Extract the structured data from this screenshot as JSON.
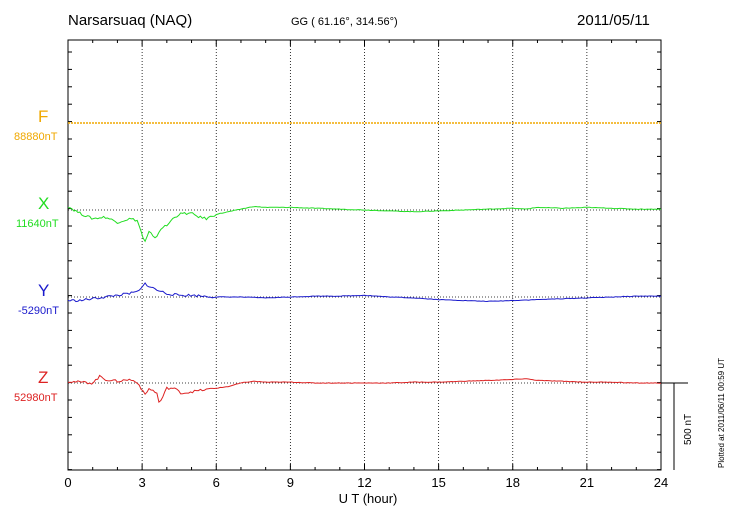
{
  "header": {
    "station": "Narsarsuaq (NAQ)",
    "coords": "GG ( 61.16°, 314.56°)",
    "date": "2011/05/11"
  },
  "plot_note": "Plotted at 2011/06/11 00:59 UT",
  "chart_data": {
    "type": "line",
    "title": "Narsarsuaq (NAQ)",
    "xlabel": "U T (hour)",
    "ylabel": "",
    "xlim": [
      0,
      24
    ],
    "xticks": [
      0,
      3,
      6,
      9,
      12,
      15,
      18,
      21,
      24
    ],
    "grid": true,
    "scale_bar": {
      "label": "500 nT",
      "value": 500
    },
    "baseline_labels": [
      {
        "key": "F",
        "name": "F",
        "value": "88880nT",
        "color": "#f0a800"
      },
      {
        "key": "X",
        "name": "X",
        "value": "11640nT",
        "color": "#22dd22"
      },
      {
        "key": "Y",
        "name": "Y",
        "value": "-5290nT",
        "color": "#1a1acc"
      },
      {
        "key": "Z",
        "name": "Z",
        "value": "52980nT",
        "color": "#dd2222"
      }
    ],
    "series": [
      {
        "name": "F",
        "unit": "nT offset",
        "baseline": 88880,
        "x": [
          0,
          3,
          6,
          9,
          12,
          15,
          18,
          21,
          24
        ],
        "values": [
          0,
          0,
          0,
          0,
          0,
          0,
          0,
          0,
          0
        ]
      },
      {
        "name": "X",
        "unit": "nT offset",
        "baseline": 11640,
        "x": [
          0,
          0.5,
          1,
          1.5,
          2,
          2.5,
          2.8,
          3,
          3.1,
          3.3,
          3.5,
          3.8,
          4,
          4.3,
          4.6,
          5,
          5.3,
          5.6,
          6,
          6.5,
          7,
          7.5,
          8,
          9,
          10,
          11,
          12,
          13,
          14,
          15,
          16,
          17,
          18,
          18.5,
          19,
          20,
          21,
          22,
          23,
          24
        ],
        "values": [
          20,
          -20,
          -50,
          -40,
          -70,
          -50,
          -60,
          -140,
          -190,
          -120,
          -170,
          -100,
          -90,
          -40,
          -20,
          -20,
          -40,
          -50,
          -25,
          -10,
          5,
          20,
          15,
          15,
          10,
          5,
          0,
          -5,
          -10,
          -5,
          0,
          5,
          10,
          5,
          15,
          10,
          15,
          10,
          5,
          5
        ]
      },
      {
        "name": "Y",
        "unit": "nT offset",
        "baseline": -5290,
        "x": [
          0,
          0.5,
          1,
          1.5,
          2,
          2.5,
          2.8,
          3,
          3.1,
          3.3,
          3.6,
          4,
          4.5,
          5,
          5.5,
          6,
          7,
          8,
          9,
          10,
          11,
          12,
          13,
          14,
          15,
          16,
          17,
          18,
          19,
          20,
          21,
          22,
          23,
          24
        ],
        "values": [
          -20,
          -20,
          -10,
          0,
          10,
          20,
          30,
          50,
          80,
          60,
          40,
          20,
          10,
          10,
          5,
          0,
          0,
          -5,
          0,
          5,
          5,
          10,
          0,
          -5,
          -15,
          -20,
          -25,
          -20,
          -15,
          -10,
          -5,
          0,
          5,
          5
        ]
      },
      {
        "name": "Z",
        "unit": "nT offset",
        "baseline": 52980,
        "x": [
          0,
          0.5,
          1,
          1.3,
          1.5,
          2,
          2.5,
          2.8,
          3,
          3.1,
          3.3,
          3.6,
          3.7,
          4,
          4.3,
          4.6,
          5,
          5.5,
          6,
          6.5,
          7,
          7.5,
          8,
          9,
          10,
          11,
          12,
          13,
          14,
          15,
          16,
          17,
          18,
          18.5,
          19,
          20,
          21,
          22,
          23,
          24
        ],
        "values": [
          10,
          5,
          0,
          40,
          20,
          10,
          20,
          5,
          -40,
          -70,
          -30,
          -60,
          -120,
          -30,
          -30,
          -60,
          -50,
          -40,
          -30,
          -20,
          0,
          10,
          5,
          5,
          0,
          0,
          0,
          0,
          5,
          5,
          10,
          15,
          20,
          25,
          15,
          10,
          5,
          5,
          0,
          0
        ]
      }
    ]
  }
}
